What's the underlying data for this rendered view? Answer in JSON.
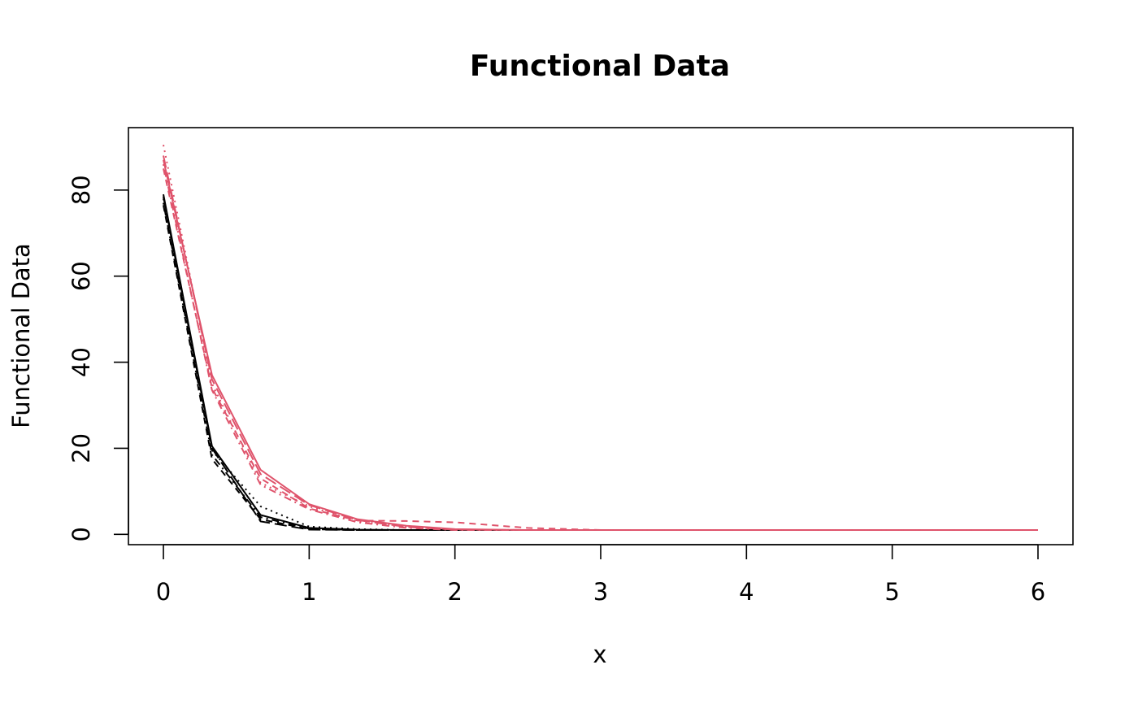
{
  "chart_data": {
    "type": "line",
    "title": "Functional Data",
    "xlabel": "x",
    "ylabel": "Functional Data",
    "xlim": [
      -0.24,
      6.24
    ],
    "ylim": [
      -2.4,
      94.5
    ],
    "x_ticks": [
      0,
      1,
      2,
      3,
      4,
      5,
      6
    ],
    "y_ticks": [
      0,
      20,
      40,
      60,
      80
    ],
    "x": [
      0,
      0.333,
      0.667,
      1,
      1.333,
      1.667,
      2,
      2.5,
      3,
      4,
      5,
      6
    ],
    "groups": [
      {
        "color": "#000000"
      },
      {
        "color": "#DF536B"
      }
    ],
    "series": [
      {
        "group": 0,
        "dash": "solid",
        "values": [
          79,
          20.5,
          4.5,
          1.5,
          1.1,
          1.0,
          1.0,
          1.0,
          1.0,
          1.0,
          1.0,
          1.0
        ]
      },
      {
        "group": 0,
        "dash": "dashed",
        "values": [
          76.5,
          17.5,
          3.5,
          1.2,
          1.0,
          1.0,
          1.0,
          1.0,
          1.0,
          1.0,
          1.0,
          1.0
        ]
      },
      {
        "group": 0,
        "dash": "dotted",
        "values": [
          78,
          19.5,
          6.5,
          1.8,
          1.2,
          1.0,
          1.0,
          1.0,
          1.0,
          1.0,
          1.0,
          1.0
        ]
      },
      {
        "group": 0,
        "dash": "dotdash",
        "values": [
          77,
          18.5,
          4.0,
          1.3,
          1.0,
          1.0,
          1.0,
          1.0,
          1.0,
          1.0,
          1.0,
          1.0
        ]
      },
      {
        "group": 0,
        "dash": "longdash",
        "values": [
          78.5,
          20,
          3.0,
          1.1,
          1.0,
          1.0,
          1.0,
          1.0,
          1.0,
          1.0,
          1.0,
          1.0
        ]
      },
      {
        "group": 1,
        "dash": "solid",
        "values": [
          87,
          37,
          15,
          7,
          3.5,
          2.0,
          1.2,
          1.0,
          1.0,
          1.0,
          1.0,
          1.0
        ]
      },
      {
        "group": 1,
        "dash": "dashed",
        "values": [
          85,
          34,
          13,
          6,
          3.2,
          3.1,
          2.8,
          1.5,
          1.0,
          1.0,
          1.0,
          1.0
        ]
      },
      {
        "group": 1,
        "dash": "dotted",
        "values": [
          90.5,
          35,
          12,
          6.5,
          3.0,
          1.8,
          1.1,
          1.0,
          1.0,
          1.0,
          1.0,
          1.0
        ]
      },
      {
        "group": 1,
        "dash": "dotdash",
        "values": [
          86,
          33.5,
          11.5,
          5.8,
          2.8,
          1.5,
          1.0,
          1.0,
          1.0,
          1.0,
          1.0,
          1.0
        ]
      },
      {
        "group": 1,
        "dash": "longdash",
        "values": [
          88,
          36,
          14,
          6.8,
          3.3,
          1.7,
          1.1,
          1.0,
          1.0,
          1.0,
          1.0,
          1.0
        ]
      }
    ]
  }
}
